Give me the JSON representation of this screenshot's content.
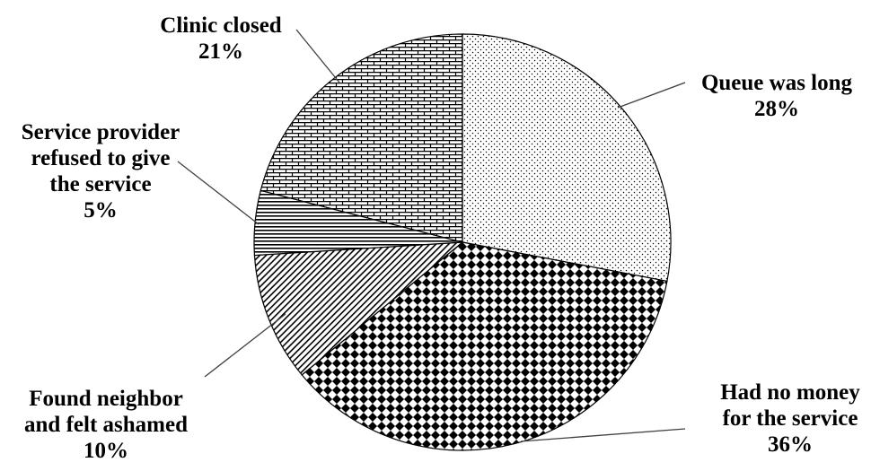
{
  "chart_data": {
    "type": "pie",
    "title": "",
    "start_angle_deg": 0,
    "direction": "clockwise",
    "slices": [
      {
        "name": "Queue was long",
        "label_lines": [
          "Queue was long"
        ],
        "pct_label": "28%",
        "value": 28,
        "pattern": "dots"
      },
      {
        "name": "Had no money for the service",
        "label_lines": [
          "Had no money",
          "for the service"
        ],
        "pct_label": "36%",
        "value": 36,
        "pattern": "diamonds"
      },
      {
        "name": "Found neighbor and felt ashamed",
        "label_lines": [
          "Found neighbor",
          "and felt ashamed"
        ],
        "pct_label": "10%",
        "value": 10,
        "pattern": "diagonal-stripes"
      },
      {
        "name": "Service provider refused to give the service",
        "label_lines": [
          "Service provider",
          "refused to give",
          "the service"
        ],
        "pct_label": "5%",
        "value": 5,
        "pattern": "horizontal-stripes"
      },
      {
        "name": "Clinic closed",
        "label_lines": [
          "Clinic closed"
        ],
        "pct_label": "21%",
        "value": 21,
        "pattern": "bricks"
      }
    ],
    "legend": "none",
    "colors": {
      "stroke": "#000000",
      "fill": "#ffffff",
      "text": "#000000",
      "leader": "#404040"
    }
  }
}
